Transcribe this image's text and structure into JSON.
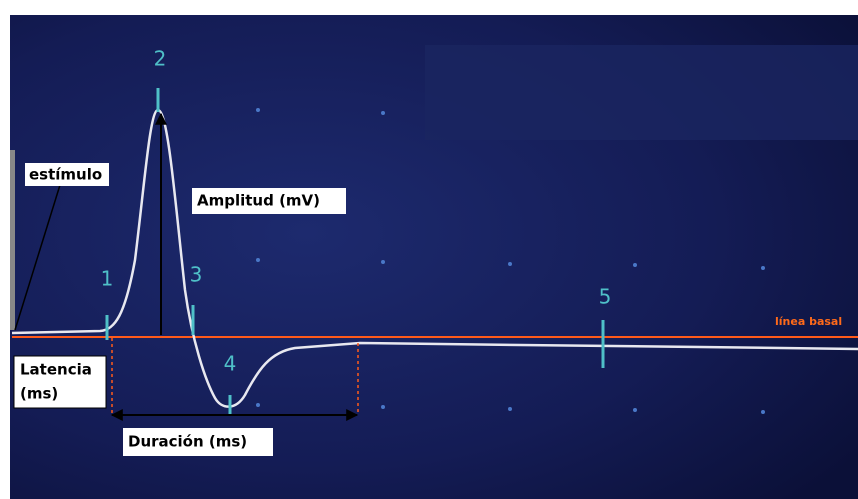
{
  "markers": [
    "1",
    "2",
    "3",
    "4",
    "5"
  ],
  "labels": {
    "stimulus": "estímulo",
    "amplitude": "Amplitud (mV)",
    "baseline": "línea basal",
    "latency": [
      "Latencia",
      "(ms)"
    ],
    "duration": "Duración (ms)"
  }
}
